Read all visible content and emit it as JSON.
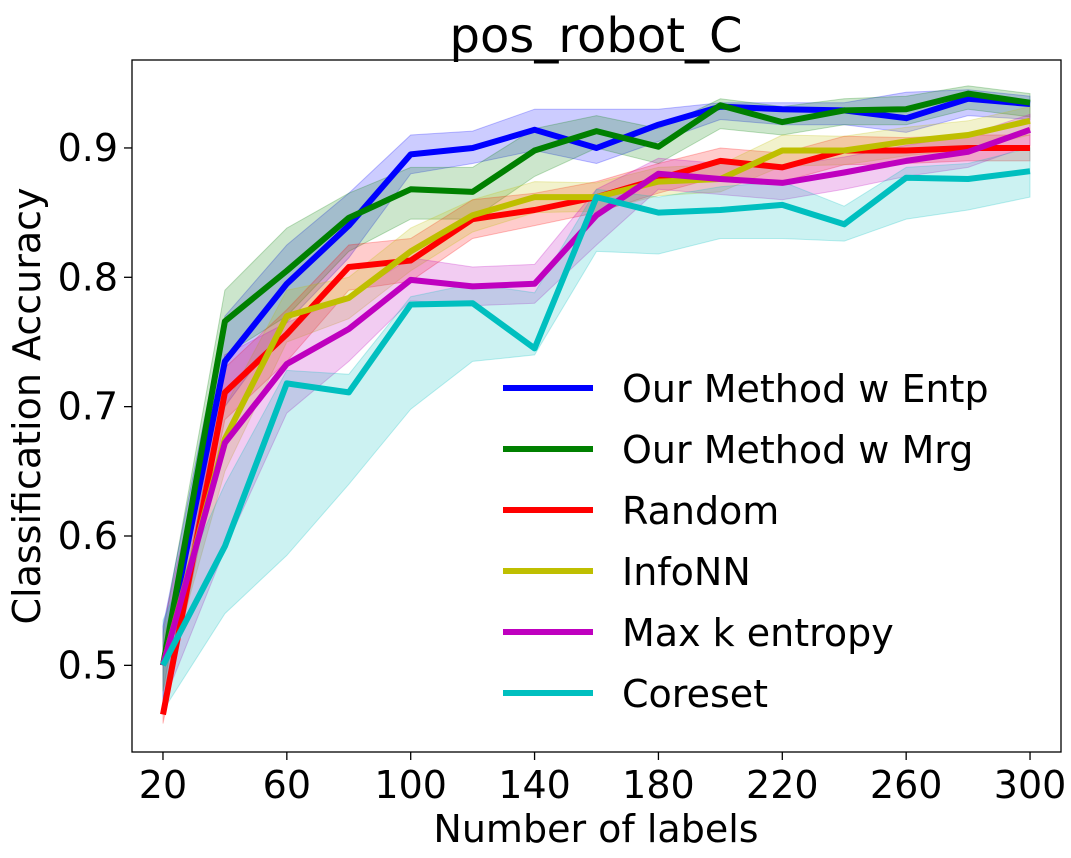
{
  "chart_data": {
    "type": "line",
    "title": "pos_robot_C",
    "xlabel": "Number of labels",
    "ylabel": "Classification Accuracy",
    "x": [
      20,
      40,
      60,
      80,
      100,
      120,
      140,
      160,
      180,
      200,
      220,
      240,
      260,
      280,
      300
    ],
    "xticks": [
      20,
      60,
      100,
      140,
      180,
      220,
      260,
      300
    ],
    "yticks": [
      0.5,
      0.6,
      0.7,
      0.8,
      0.9
    ],
    "ytick_labels": [
      "0.5",
      "0.6",
      "0.7",
      "0.8",
      "0.9"
    ],
    "xlim": [
      10,
      310
    ],
    "ylim": [
      0.433,
      0.968
    ],
    "grid": false,
    "legend_position": "center-right",
    "series": [
      {
        "name": "Our Method w Entp",
        "color": "#0000ff",
        "values": [
          0.5,
          0.735,
          0.795,
          0.84,
          0.895,
          0.9,
          0.914,
          0.9,
          0.918,
          0.932,
          0.93,
          0.929,
          0.923,
          0.938,
          0.934
        ],
        "lower": [
          0.47,
          0.7,
          0.765,
          0.815,
          0.88,
          0.888,
          0.898,
          0.888,
          0.905,
          0.922,
          0.918,
          0.918,
          0.912,
          0.925,
          0.922
        ],
        "upper": [
          0.53,
          0.77,
          0.825,
          0.865,
          0.91,
          0.913,
          0.93,
          0.93,
          0.93,
          0.935,
          0.935,
          0.935,
          0.943,
          0.945,
          0.94
        ]
      },
      {
        "name": "Our Method w Mrg",
        "color": "#008000",
        "values": [
          0.5,
          0.766,
          0.805,
          0.846,
          0.868,
          0.866,
          0.898,
          0.913,
          0.901,
          0.933,
          0.92,
          0.929,
          0.93,
          0.942,
          0.935
        ],
        "lower": [
          0.48,
          0.74,
          0.77,
          0.82,
          0.845,
          0.845,
          0.878,
          0.9,
          0.888,
          0.915,
          0.91,
          0.918,
          0.918,
          0.93,
          0.924
        ],
        "upper": [
          0.525,
          0.79,
          0.838,
          0.865,
          0.885,
          0.885,
          0.915,
          0.925,
          0.915,
          0.938,
          0.932,
          0.938,
          0.94,
          0.948,
          0.942
        ]
      },
      {
        "name": "Random",
        "color": "#ff0000",
        "values": [
          0.462,
          0.711,
          0.756,
          0.808,
          0.813,
          0.845,
          0.852,
          0.862,
          0.876,
          0.89,
          0.885,
          0.898,
          0.898,
          0.9,
          0.9
        ],
        "lower": [
          0.455,
          0.69,
          0.735,
          0.79,
          0.797,
          0.83,
          0.84,
          0.85,
          0.865,
          0.878,
          0.874,
          0.887,
          0.888,
          0.89,
          0.89
        ],
        "upper": [
          0.47,
          0.73,
          0.775,
          0.825,
          0.83,
          0.86,
          0.865,
          0.874,
          0.888,
          0.9,
          0.896,
          0.909,
          0.908,
          0.91,
          0.91
        ]
      },
      {
        "name": "InfoNN",
        "color": "#bfbf00",
        "values": [
          0.5,
          0.675,
          0.77,
          0.784,
          0.82,
          0.848,
          0.862,
          0.862,
          0.874,
          0.876,
          0.898,
          0.898,
          0.905,
          0.91,
          0.921
        ],
        "lower": [
          0.48,
          0.65,
          0.75,
          0.768,
          0.805,
          0.835,
          0.85,
          0.851,
          0.863,
          0.866,
          0.886,
          0.887,
          0.894,
          0.899,
          0.91
        ],
        "upper": [
          0.52,
          0.7,
          0.79,
          0.8,
          0.838,
          0.86,
          0.874,
          0.873,
          0.885,
          0.887,
          0.91,
          0.909,
          0.916,
          0.921,
          0.932
        ]
      },
      {
        "name": "Max k entropy",
        "color": "#bf00bf",
        "values": [
          0.5,
          0.672,
          0.733,
          0.76,
          0.798,
          0.793,
          0.795,
          0.848,
          0.88,
          0.876,
          0.873,
          0.881,
          0.89,
          0.897,
          0.914
        ],
        "lower": [
          0.47,
          0.59,
          0.695,
          0.735,
          0.782,
          0.778,
          0.78,
          0.825,
          0.868,
          0.864,
          0.86,
          0.868,
          0.878,
          0.885,
          0.902
        ],
        "upper": [
          0.53,
          0.74,
          0.765,
          0.785,
          0.815,
          0.808,
          0.81,
          0.868,
          0.892,
          0.888,
          0.886,
          0.893,
          0.902,
          0.91,
          0.926
        ]
      },
      {
        "name": "Coreset",
        "color": "#00bfbf",
        "values": [
          0.5,
          0.592,
          0.718,
          0.711,
          0.779,
          0.78,
          0.745,
          0.862,
          0.85,
          0.852,
          0.856,
          0.841,
          0.877,
          0.876,
          0.882
        ],
        "lower": [
          0.465,
          0.54,
          0.585,
          0.64,
          0.698,
          0.735,
          0.74,
          0.82,
          0.818,
          0.83,
          0.83,
          0.828,
          0.845,
          0.852,
          0.862
        ],
        "upper": [
          0.535,
          0.64,
          0.728,
          0.725,
          0.785,
          0.795,
          0.788,
          0.868,
          0.862,
          0.87,
          0.874,
          0.855,
          0.885,
          0.888,
          0.9
        ]
      }
    ]
  }
}
